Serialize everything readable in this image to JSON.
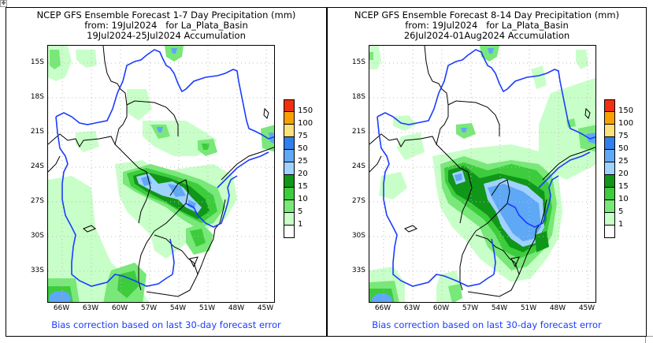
{
  "corner_icon": "move-icon",
  "colors": {
    "river": "#1a3cff",
    "border": "#000000",
    "footer_text": "#1a3cff"
  },
  "legend_scale": [
    {
      "label": "150",
      "color": "#f03010"
    },
    {
      "label": "100",
      "color": "#f9a000"
    },
    {
      "label": "75",
      "color": "#fde27a"
    },
    {
      "label": "50",
      "color": "#2f80ec"
    },
    {
      "label": "25",
      "color": "#5ea8f5"
    },
    {
      "label": "20",
      "color": "#a0d2ff"
    },
    {
      "label": "15",
      "color": "#109618"
    },
    {
      "label": "10",
      "color": "#3ccc3c"
    },
    {
      "label": "5",
      "color": "#78e878"
    },
    {
      "label": "1",
      "color": "#c8ffc8"
    },
    {
      "label": "",
      "color": "#ffffff"
    }
  ],
  "lat_ticks": [
    "15S",
    "18S",
    "21S",
    "24S",
    "27S",
    "30S",
    "33S"
  ],
  "lon_ticks": [
    "66W",
    "63W",
    "60W",
    "57W",
    "54W",
    "51W",
    "48W",
    "45W"
  ],
  "panels": [
    {
      "title_line1": "NCEP GFS Ensemble Forecast 1-7 Day Precipitation (mm)",
      "title_line2": "from: 19Jul2024   for La_Plata_Basin",
      "title_line3": "19Jul2024-25Jul2024 Accumulation",
      "footer": "Bias correction based on last 30-day forecast error"
    },
    {
      "title_line1": "NCEP GFS Ensemble Forecast 8-14 Day Precipitation (mm)",
      "title_line2": "from: 19Jul2024   for La_Plata_Basin",
      "title_line3": "26Jul2024-01Aug2024 Accumulation",
      "footer": "Bias correction based on last 30-day forecast error"
    }
  ]
}
